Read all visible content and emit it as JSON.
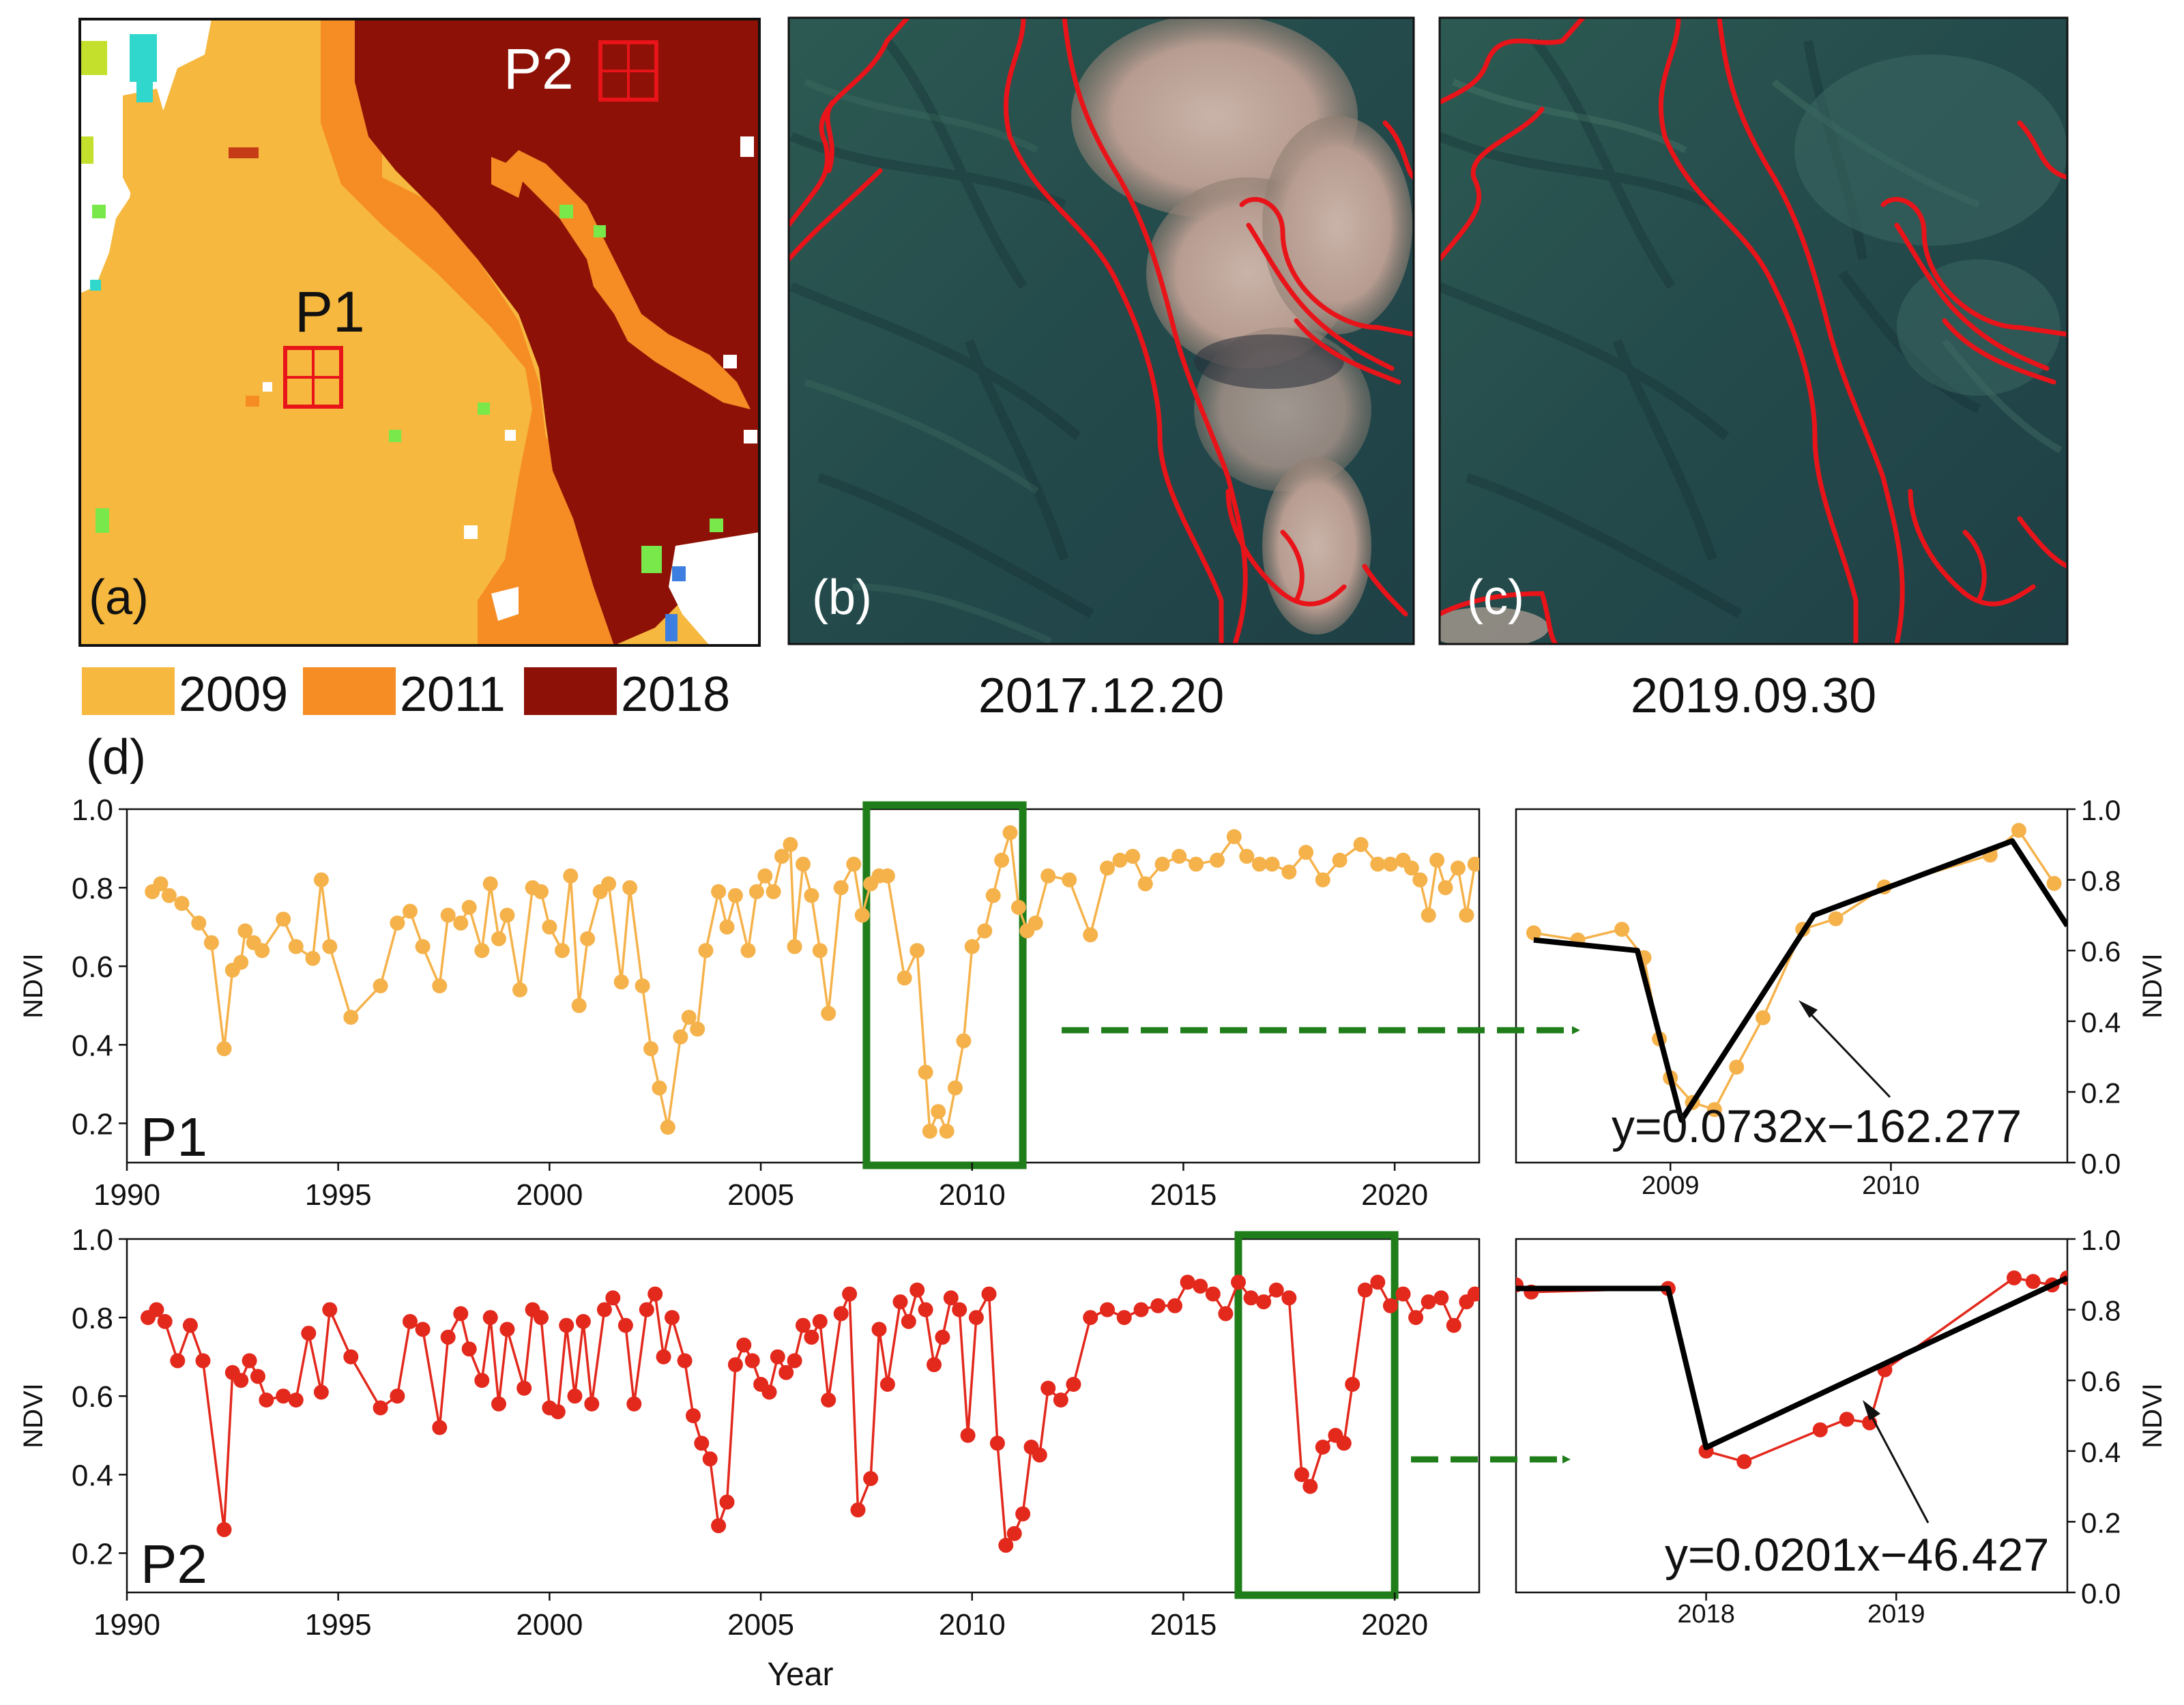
{
  "panels": {
    "a": {
      "label": "(a)",
      "points": [
        "P1",
        "P2"
      ],
      "colors": {
        "c2009": "#f6b83e",
        "c2011": "#f68c24",
        "c2018": "#8d1106",
        "white": "#ffffff",
        "green": "#79e84a",
        "yellowgreen": "#c4e02c",
        "cyan": "#2fd7cc",
        "blue": "#3c7fe0",
        "darkorange": "#d8651a",
        "marker": "#e8141a"
      }
    },
    "b": {
      "label": "(b)",
      "date": "2017.12.20"
    },
    "c": {
      "label": "(c)",
      "date": "2019.09.30"
    },
    "legend": [
      {
        "label": "2009",
        "color": "#f6b83e"
      },
      {
        "label": "2011",
        "color": "#f68c24"
      },
      {
        "label": "2018",
        "color": "#8d1106"
      }
    ],
    "d": {
      "label": "(d)"
    }
  },
  "chart_data": [
    {
      "type": "line",
      "point": "P1",
      "color": "#f5b24b",
      "ylabel": "NDVI",
      "xlabel": "",
      "xlim": [
        1990,
        2022
      ],
      "ylim": [
        0.1,
        1.0
      ],
      "xticks": [
        1990,
        1995,
        2000,
        2005,
        2010,
        2015,
        2020
      ],
      "yticks": [
        0.2,
        0.4,
        0.6,
        0.8,
        1.0
      ],
      "highlight": [
        2007.5,
        2011.2
      ],
      "x": [
        1990.6,
        1990.8,
        1991.0,
        1991.3,
        1991.7,
        1992.0,
        1992.3,
        1992.5,
        1992.7,
        1992.8,
        1993.0,
        1993.2,
        1993.7,
        1994.0,
        1994.4,
        1994.6,
        1994.8,
        1995.3,
        1996.0,
        1996.4,
        1996.7,
        1997.0,
        1997.4,
        1997.6,
        1997.9,
        1998.1,
        1998.4,
        1998.6,
        1998.8,
        1999.0,
        1999.3,
        1999.6,
        1999.8,
        2000.0,
        2000.3,
        2000.5,
        2000.7,
        2000.9,
        2001.2,
        2001.4,
        2001.7,
        2001.9,
        2002.2,
        2002.4,
        2002.6,
        2002.8,
        2003.1,
        2003.3,
        2003.5,
        2003.7,
        2004.0,
        2004.2,
        2004.4,
        2004.7,
        2004.9,
        2005.1,
        2005.3,
        2005.5,
        2005.7,
        2005.8,
        2006.0,
        2006.2,
        2006.4,
        2006.6,
        2006.9,
        2007.2,
        2007.4,
        2007.6,
        2007.8,
        2008.0,
        2008.4,
        2008.7,
        2008.9,
        2009.0,
        2009.2,
        2009.4,
        2009.6,
        2009.8,
        2010.0,
        2010.3,
        2010.5,
        2010.7,
        2010.9,
        2011.1,
        2011.3,
        2011.5,
        2011.8,
        2012.3,
        2012.8,
        2013.2,
        2013.5,
        2013.8,
        2014.1,
        2014.5,
        2014.9,
        2015.3,
        2015.8,
        2016.2,
        2016.5,
        2016.8,
        2017.1,
        2017.5,
        2017.9,
        2018.3,
        2018.7,
        2019.2,
        2019.6,
        2019.9,
        2020.2,
        2020.4,
        2020.6,
        2020.8,
        2021.0,
        2021.2,
        2021.5,
        2021.7,
        2021.9
      ],
      "y": [
        0.79,
        0.81,
        0.78,
        0.76,
        0.71,
        0.66,
        0.39,
        0.59,
        0.61,
        0.69,
        0.66,
        0.64,
        0.72,
        0.65,
        0.62,
        0.82,
        0.65,
        0.47,
        0.55,
        0.71,
        0.74,
        0.65,
        0.55,
        0.73,
        0.71,
        0.75,
        0.64,
        0.81,
        0.67,
        0.73,
        0.54,
        0.8,
        0.79,
        0.7,
        0.64,
        0.83,
        0.5,
        0.67,
        0.79,
        0.81,
        0.56,
        0.8,
        0.55,
        0.39,
        0.29,
        0.19,
        0.42,
        0.47,
        0.44,
        0.64,
        0.79,
        0.7,
        0.78,
        0.64,
        0.79,
        0.83,
        0.79,
        0.88,
        0.91,
        0.65,
        0.86,
        0.78,
        0.64,
        0.48,
        0.8,
        0.86,
        0.73,
        0.81,
        0.83,
        0.83,
        0.57,
        0.64,
        0.33,
        0.18,
        0.23,
        0.18,
        0.29,
        0.41,
        0.65,
        0.69,
        0.78,
        0.87,
        0.94,
        0.75,
        0.69,
        0.71,
        0.83,
        0.82,
        0.68,
        0.85,
        0.87,
        0.88,
        0.81,
        0.86,
        0.88,
        0.86,
        0.87,
        0.93,
        0.88,
        0.86,
        0.86,
        0.84,
        0.89,
        0.82,
        0.87,
        0.91,
        0.86,
        0.86,
        0.87,
        0.85,
        0.82,
        0.73,
        0.87,
        0.8,
        0.85,
        0.73,
        0.86
      ]
    },
    {
      "type": "line",
      "point": "P1",
      "color": "#f5b24b",
      "fit_color": "#000000",
      "ylabel": "NDVI",
      "xlim": [
        2008.3,
        2010.8
      ],
      "ylim": [
        0.0,
        1.0
      ],
      "xticks": [
        2009,
        2010
      ],
      "yticks": [
        0.0,
        0.2,
        0.4,
        0.6,
        0.8,
        1.0
      ],
      "x": [
        2008.38,
        2008.58,
        2008.78,
        2008.88,
        2008.95,
        2009.0,
        2009.1,
        2009.2,
        2009.3,
        2009.42,
        2009.6,
        2009.75,
        2009.97,
        2010.45,
        2010.58,
        2010.74
      ],
      "y": [
        0.65,
        0.63,
        0.66,
        0.58,
        0.35,
        0.24,
        0.17,
        0.15,
        0.27,
        0.41,
        0.66,
        0.69,
        0.78,
        0.87,
        0.94,
        0.79
      ],
      "fit_x": [
        2008.38,
        2008.85,
        2009.05,
        2009.65,
        2010.55,
        2010.8
      ],
      "fit_y": [
        0.63,
        0.6,
        0.12,
        0.7,
        0.91,
        0.67
      ],
      "equation": "y=0.0732x−162.277",
      "arrow": true
    },
    {
      "type": "line",
      "point": "P2",
      "color": "#e3281c",
      "ylabel": "NDVI",
      "xlabel": "Year",
      "xlim": [
        1990,
        2022
      ],
      "ylim": [
        0.1,
        1.0
      ],
      "xticks": [
        1990,
        1995,
        2000,
        2005,
        2010,
        2015,
        2020
      ],
      "yticks": [
        0.2,
        0.4,
        0.6,
        0.8,
        1.0
      ],
      "highlight": [
        2016.3,
        2020.0
      ],
      "x": [
        1990.5,
        1990.7,
        1990.9,
        1991.2,
        1991.5,
        1991.8,
        1992.3,
        1992.5,
        1992.7,
        1992.9,
        1993.1,
        1993.3,
        1993.7,
        1994.0,
        1994.3,
        1994.6,
        1994.8,
        1995.3,
        1996.0,
        1996.4,
        1996.7,
        1997.0,
        1997.4,
        1997.6,
        1997.9,
        1998.1,
        1998.4,
        1998.6,
        1998.8,
        1999.0,
        1999.4,
        1999.6,
        1999.8,
        2000.0,
        2000.2,
        2000.4,
        2000.6,
        2000.8,
        2001.0,
        2001.3,
        2001.5,
        2001.8,
        2002.0,
        2002.3,
        2002.5,
        2002.7,
        2002.9,
        2003.2,
        2003.4,
        2003.6,
        2003.8,
        2004.0,
        2004.2,
        2004.4,
        2004.6,
        2004.8,
        2005.0,
        2005.2,
        2005.4,
        2005.6,
        2005.8,
        2006.0,
        2006.2,
        2006.4,
        2006.6,
        2006.9,
        2007.1,
        2007.3,
        2007.6,
        2007.8,
        2008.0,
        2008.3,
        2008.5,
        2008.7,
        2008.9,
        2009.1,
        2009.3,
        2009.5,
        2009.7,
        2009.9,
        2010.1,
        2010.4,
        2010.6,
        2010.8,
        2011.0,
        2011.2,
        2011.4,
        2011.6,
        2011.8,
        2012.1,
        2012.4,
        2012.8,
        2013.2,
        2013.6,
        2014.0,
        2014.4,
        2014.8,
        2015.1,
        2015.4,
        2015.7,
        2016.0,
        2016.3,
        2016.6,
        2016.9,
        2017.2,
        2017.5,
        2017.8,
        2018.0,
        2018.3,
        2018.6,
        2018.8,
        2019.0,
        2019.3,
        2019.6,
        2019.9,
        2020.2,
        2020.5,
        2020.8,
        2021.1,
        2021.4,
        2021.7,
        2021.9
      ],
      "y": [
        0.8,
        0.82,
        0.79,
        0.69,
        0.78,
        0.69,
        0.26,
        0.66,
        0.64,
        0.69,
        0.65,
        0.59,
        0.6,
        0.59,
        0.76,
        0.61,
        0.82,
        0.7,
        0.57,
        0.6,
        0.79,
        0.77,
        0.52,
        0.75,
        0.81,
        0.72,
        0.64,
        0.8,
        0.58,
        0.77,
        0.62,
        0.82,
        0.8,
        0.57,
        0.56,
        0.78,
        0.6,
        0.79,
        0.58,
        0.82,
        0.85,
        0.78,
        0.58,
        0.82,
        0.86,
        0.7,
        0.8,
        0.69,
        0.55,
        0.48,
        0.44,
        0.27,
        0.33,
        0.68,
        0.73,
        0.69,
        0.63,
        0.61,
        0.7,
        0.66,
        0.69,
        0.78,
        0.75,
        0.79,
        0.59,
        0.81,
        0.86,
        0.31,
        0.39,
        0.77,
        0.63,
        0.84,
        0.79,
        0.87,
        0.82,
        0.68,
        0.75,
        0.85,
        0.82,
        0.5,
        0.8,
        0.86,
        0.48,
        0.22,
        0.25,
        0.3,
        0.47,
        0.45,
        0.62,
        0.59,
        0.63,
        0.8,
        0.82,
        0.8,
        0.82,
        0.83,
        0.83,
        0.89,
        0.88,
        0.86,
        0.81,
        0.89,
        0.85,
        0.84,
        0.87,
        0.85,
        0.4,
        0.37,
        0.47,
        0.5,
        0.48,
        0.63,
        0.87,
        0.89,
        0.83,
        0.86,
        0.8,
        0.84,
        0.85,
        0.78,
        0.84,
        0.86
      ],
      "fit_x": [],
      "fit_y": []
    },
    {
      "type": "line",
      "point": "P2",
      "color": "#e3281c",
      "fit_color": "#000000",
      "ylabel": "NDVI",
      "xlim": [
        2017.0,
        2019.9
      ],
      "ylim": [
        0.0,
        1.0
      ],
      "xticks": [
        2018,
        2019
      ],
      "yticks": [
        0.0,
        0.2,
        0.4,
        0.6,
        0.8,
        1.0
      ],
      "x": [
        2017.0,
        2017.08,
        2017.8,
        2018.0,
        2018.2,
        2018.6,
        2018.74,
        2018.86,
        2018.94,
        2019.62,
        2019.72,
        2019.82,
        2019.9
      ],
      "y": [
        0.87,
        0.85,
        0.86,
        0.4,
        0.37,
        0.46,
        0.49,
        0.48,
        0.63,
        0.89,
        0.88,
        0.87,
        0.89
      ],
      "fit_x": [
        2017.0,
        2017.8,
        2018.0,
        2019.9
      ],
      "fit_y": [
        0.86,
        0.86,
        0.41,
        0.89
      ],
      "equation": "y=0.0201x−46.427",
      "arrow": true
    }
  ]
}
